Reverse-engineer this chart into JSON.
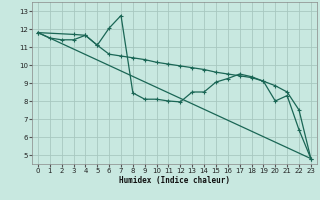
{
  "xlabel": "Humidex (Indice chaleur)",
  "xlim": [
    -0.5,
    23.5
  ],
  "ylim": [
    4.5,
    13.5
  ],
  "xticks": [
    0,
    1,
    2,
    3,
    4,
    5,
    6,
    7,
    8,
    9,
    10,
    11,
    12,
    13,
    14,
    15,
    16,
    17,
    18,
    19,
    20,
    21,
    22,
    23
  ],
  "yticks": [
    5,
    6,
    7,
    8,
    9,
    10,
    11,
    12,
    13
  ],
  "background_color": "#c8e8e0",
  "grid_color": "#a8c8c0",
  "line_color": "#1a6655",
  "line1_x": [
    0,
    1,
    2,
    3,
    4,
    5,
    6,
    7,
    8,
    9,
    10,
    11,
    12,
    13,
    14,
    15,
    16,
    17,
    18,
    19,
    20,
    21,
    22,
    23
  ],
  "line1_y": [
    11.8,
    11.5,
    11.4,
    11.4,
    11.65,
    11.1,
    10.6,
    10.5,
    10.4,
    10.3,
    10.15,
    10.05,
    9.95,
    9.85,
    9.75,
    9.6,
    9.5,
    9.4,
    9.3,
    9.1,
    8.85,
    8.5,
    7.5,
    4.8
  ],
  "line2_x": [
    0,
    3,
    4,
    5,
    6,
    7,
    8,
    9,
    10,
    11,
    12,
    13,
    14,
    15,
    16,
    17,
    18,
    19,
    20,
    21,
    22,
    23
  ],
  "line2_y": [
    11.8,
    11.7,
    11.65,
    11.1,
    12.05,
    12.75,
    8.45,
    8.1,
    8.1,
    8.0,
    7.95,
    8.5,
    8.5,
    9.05,
    9.25,
    9.5,
    9.35,
    9.1,
    8.0,
    8.3,
    6.4,
    4.8
  ],
  "line3_x": [
    0,
    23
  ],
  "line3_y": [
    11.8,
    4.8
  ]
}
